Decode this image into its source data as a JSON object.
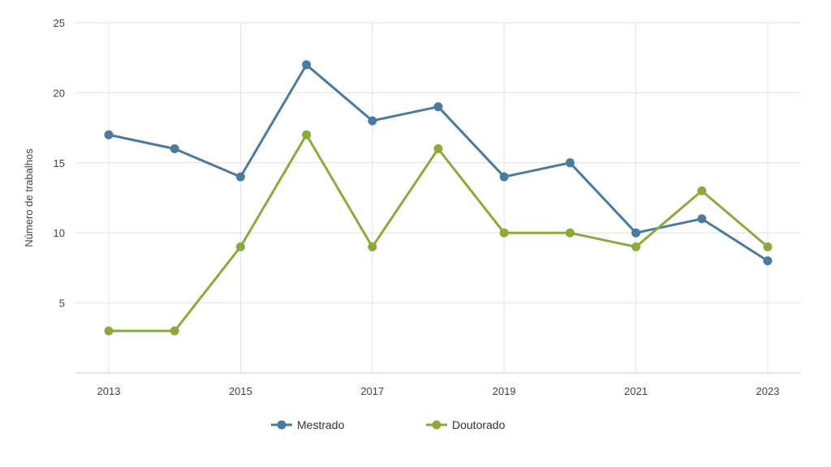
{
  "chart_data": {
    "type": "line",
    "x": [
      2013,
      2014,
      2015,
      2016,
      2017,
      2018,
      2019,
      2020,
      2021,
      2022,
      2023
    ],
    "x_tick_labels": [
      "2013",
      "2015",
      "2017",
      "2019",
      "2021",
      "2023"
    ],
    "y_tick_labels": [
      "5",
      "10",
      "15",
      "20",
      "25"
    ],
    "ylabel": "Número de trabalhos",
    "xlabel": "",
    "ylim": [
      0,
      25
    ],
    "xlim": [
      2012.5,
      2023.5
    ],
    "grid": true,
    "legend_position": "bottom-center",
    "series": [
      {
        "name": "Mestrado",
        "color": "#4a7aa0",
        "values": [
          17,
          16,
          14,
          22,
          18,
          19,
          14,
          15,
          10,
          11,
          8
        ]
      },
      {
        "name": "Doutorado",
        "color": "#8aab3c",
        "values": [
          3,
          3,
          9,
          17,
          9,
          16,
          10,
          10,
          9,
          13,
          9
        ]
      }
    ]
  }
}
